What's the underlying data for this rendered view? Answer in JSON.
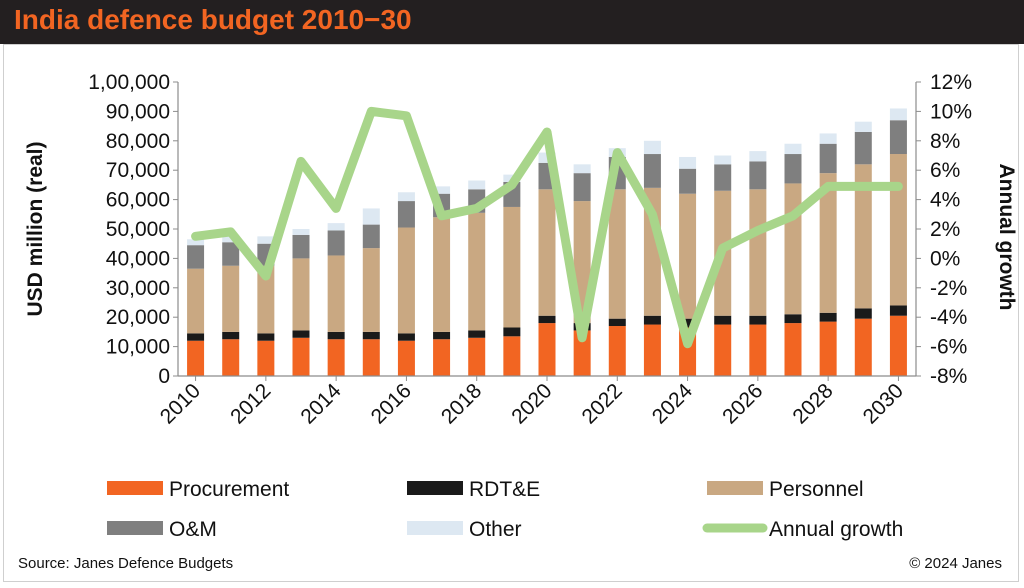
{
  "header": {
    "title": "India defence budget 2010−30"
  },
  "footer": {
    "source": "Source: Janes Defence Budgets",
    "copyright": "© 2024 Janes"
  },
  "colors": {
    "procurement": "#f26522",
    "rdte": "#1a1a1a",
    "personnel": "#c9a882",
    "om": "#7f7f7f",
    "other": "#dde8f2",
    "growth": "#a8d58a",
    "header_bg": "#231f20"
  },
  "chart_data": {
    "type": "bar",
    "stacked": true,
    "years": [
      2010,
      2011,
      2012,
      2013,
      2014,
      2015,
      2016,
      2017,
      2018,
      2019,
      2020,
      2021,
      2022,
      2023,
      2024,
      2025,
      2026,
      2027,
      2028,
      2029,
      2030
    ],
    "x_tick_labels": [
      "2010",
      "2012",
      "2014",
      "2016",
      "2018",
      "2020",
      "2022",
      "2024",
      "2026",
      "2028",
      "2030"
    ],
    "ylabel": "USD million (real)",
    "y2label": "Annual growth",
    "ylim": [
      0,
      100000
    ],
    "y_ticks": [
      "0",
      "10,000",
      "20,000",
      "30,000",
      "40,000",
      "50,000",
      "60,000",
      "70,000",
      "80,000",
      "90,000",
      "1,00,000"
    ],
    "y2lim": [
      -8,
      12
    ],
    "y2_ticks": [
      "-8%",
      "-6%",
      "-4%",
      "-2%",
      "0%",
      "2%",
      "4%",
      "6%",
      "8%",
      "10%",
      "12%"
    ],
    "series": [
      {
        "name": "Procurement",
        "values": [
          12000,
          12500,
          12000,
          13000,
          12500,
          12500,
          12000,
          12500,
          13000,
          13500,
          18000,
          15500,
          17000,
          17500,
          16500,
          17500,
          17500,
          18000,
          18500,
          19500,
          20500
        ]
      },
      {
        "name": "RDT&E",
        "values": [
          2500,
          2500,
          2500,
          2500,
          2500,
          2500,
          2500,
          2500,
          2500,
          3000,
          2500,
          2500,
          2500,
          3000,
          3000,
          3000,
          3000,
          3000,
          3000,
          3500,
          3500
        ]
      },
      {
        "name": "Personnel",
        "values": [
          22000,
          22500,
          23000,
          24500,
          26000,
          28500,
          36000,
          39000,
          40000,
          41000,
          43000,
          41500,
          44000,
          43500,
          42500,
          42500,
          43000,
          44500,
          47500,
          49000,
          51500
        ]
      },
      {
        "name": "O&M",
        "values": [
          8000,
          8000,
          7500,
          8000,
          8500,
          8000,
          9000,
          8000,
          8000,
          8500,
          9000,
          9500,
          11000,
          11500,
          8500,
          9000,
          9500,
          10000,
          10000,
          11000,
          11500
        ]
      },
      {
        "name": "Other",
        "values": [
          2000,
          2500,
          2500,
          2000,
          2500,
          5500,
          3000,
          2500,
          3000,
          2500,
          3500,
          3000,
          3000,
          4500,
          4000,
          3000,
          3500,
          3500,
          3500,
          3500,
          4000
        ]
      }
    ],
    "growth": {
      "name": "Annual growth",
      "values": [
        1.5,
        1.8,
        -1.2,
        6.6,
        3.4,
        10.0,
        9.7,
        2.9,
        3.4,
        5.0,
        8.6,
        -5.4,
        7.2,
        3.0,
        -5.8,
        0.7,
        1.9,
        2.9,
        4.9,
        4.9,
        4.9
      ]
    },
    "legend": [
      "Procurement",
      "RDT&E",
      "Personnel",
      "O&M",
      "Other",
      "Annual growth"
    ],
    "legend_position": "bottom",
    "grid": false
  }
}
